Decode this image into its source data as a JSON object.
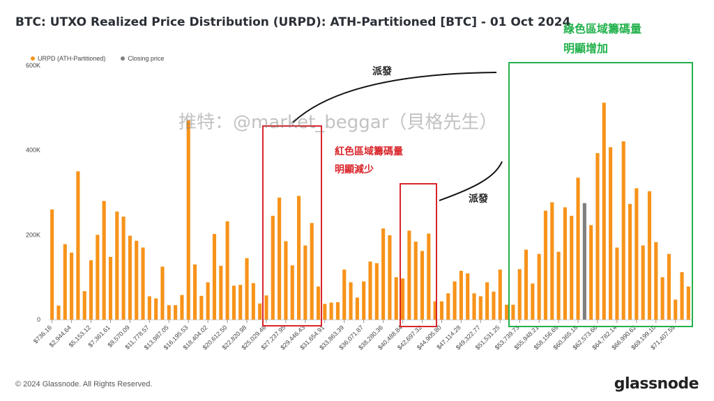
{
  "title": "BTC: UTXO Realized Price Distribution (URPD): ATH-Partitioned [BTC] - 01 Oct 2024",
  "footer": {
    "copyright": "© 2024 Glassnode. All Rights Reserved.",
    "logo": "glassnode"
  },
  "annotations": {
    "green_line1": "綠色區域籌碼量",
    "green_line2": "明顯增加",
    "red_line1": "紅色區域籌碼量",
    "red_line2": "明顯減少",
    "spread_top": "派發",
    "spread_mid": "派發",
    "watermark": "推特：@market_beggar（貝格先生）"
  },
  "colors": {
    "bar": "#f7931a",
    "closing": "#7f7f7f",
    "green_box": "#22b14c",
    "red_box": "#d9252b"
  },
  "chart_data": {
    "type": "bar",
    "legend": [
      {
        "name": "URPD (ATH-Partitioned)",
        "color": "#f7931a"
      },
      {
        "name": "Closing price",
        "color": "#7f7f7f"
      }
    ],
    "ylim": [
      0,
      600000
    ],
    "yticks": [
      {
        "value": 0,
        "label": "0"
      },
      {
        "value": 200000,
        "label": "200K"
      },
      {
        "value": 400000,
        "label": "400K"
      },
      {
        "value": 600000,
        "label": "600K"
      }
    ],
    "xtick_labels": [
      "$736.16",
      "$2,944.64",
      "$5,153.12",
      "$7,361.61",
      "$9,570.09",
      "$11,778.57",
      "$13,987.05",
      "$16,195.53",
      "$18,404.02",
      "$20,612.50",
      "$22,820.98",
      "$25,029.46",
      "$27,237.95",
      "$29,446.43",
      "$31,654.91",
      "$33,863.39",
      "$36,071.87",
      "$38,280.36",
      "$40,488.84",
      "$42,697.32",
      "$44,905.80",
      "$47,114.28",
      "$49,322.77",
      "$51,531.25",
      "$53,739.73",
      "$55,948.21",
      "$58,156.69",
      "$60,365.18",
      "$62,573.66",
      "$64,782.14",
      "$66,990.62",
      "$69,199.10",
      "$71,407.59"
    ],
    "values": [
      260000,
      33000,
      178000,
      158000,
      350000,
      67000,
      140000,
      200000,
      280000,
      148000,
      255000,
      243000,
      198000,
      186000,
      170000,
      55000,
      50000,
      125000,
      34000,
      34000,
      58000,
      470000,
      130000,
      56000,
      88000,
      202000,
      127000,
      232000,
      80000,
      82000,
      145000,
      86000,
      38000,
      57000,
      245000,
      288000,
      185000,
      128000,
      292000,
      175000,
      228000,
      78000,
      37000,
      40000,
      41000,
      118000,
      88000,
      52000,
      90000,
      137000,
      133000,
      215000,
      199000,
      100000,
      97000,
      210000,
      184000,
      162000,
      203000,
      43000,
      43000,
      62000,
      90000,
      115000,
      109000,
      62000,
      55000,
      88000,
      66000,
      118000,
      35000,
      35000,
      119000,
      165000,
      85000,
      155000,
      257000,
      277000,
      160000,
      265000,
      245000,
      335000,
      275000,
      223000,
      393000,
      512000,
      407000,
      170000,
      421000,
      273000,
      310000,
      175000,
      303000,
      183000,
      100000,
      155000,
      47000,
      112000,
      78000
    ],
    "closing_index": 82
  }
}
